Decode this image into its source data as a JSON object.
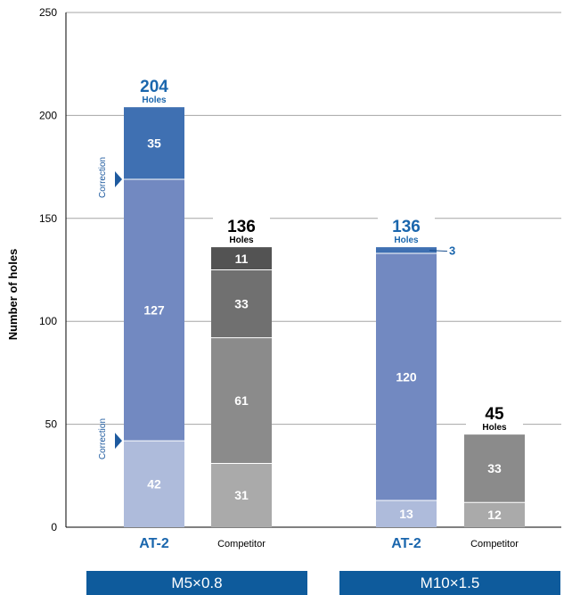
{
  "chart_data": {
    "type": "bar",
    "stacked": true,
    "ylabel": "Number of holes",
    "ylim": [
      0,
      250
    ],
    "yticks": [
      0,
      50,
      100,
      150,
      200,
      250
    ],
    "grid": true,
    "groups": [
      {
        "label": "M5×0.8",
        "bars": [
          {
            "name": "AT-2",
            "brand": true,
            "total": 204,
            "total_unit": "Holes",
            "segments": [
              {
                "value": 42,
                "color": "#aebbdb"
              },
              {
                "value": 127,
                "color": "#7289c1"
              },
              {
                "value": 35,
                "color": "#3f70b2"
              }
            ],
            "markers": [
              {
                "text": "Correction",
                "at": 42
              },
              {
                "text": "Correction",
                "at": 169
              }
            ]
          },
          {
            "name": "Competitor",
            "brand": false,
            "total": 136,
            "total_unit": "Holes",
            "segments": [
              {
                "value": 31,
                "color": "#aaaaaa"
              },
              {
                "value": 61,
                "color": "#8b8b8b"
              },
              {
                "value": 33,
                "color": "#707070"
              },
              {
                "value": 11,
                "color": "#535353"
              }
            ]
          }
        ]
      },
      {
        "label": "M10×1.5",
        "bars": [
          {
            "name": "AT-2",
            "brand": true,
            "total": 136,
            "total_unit": "Holes",
            "segments": [
              {
                "value": 13,
                "color": "#aebbdb"
              },
              {
                "value": 120,
                "color": "#7289c1"
              },
              {
                "value": 3,
                "color": "#3f70b2",
                "label_outside": true
              }
            ]
          },
          {
            "name": "Competitor",
            "brand": false,
            "total": 45,
            "total_unit": "Holes",
            "segments": [
              {
                "value": 12,
                "color": "#aaaaaa"
              },
              {
                "value": 33,
                "color": "#8b8b8b"
              }
            ]
          }
        ]
      }
    ]
  },
  "colors": {
    "brand_blue": "#1a66ad",
    "marker_blue": "#1e5a9f",
    "group_label_bg": "#0e5b9c"
  }
}
